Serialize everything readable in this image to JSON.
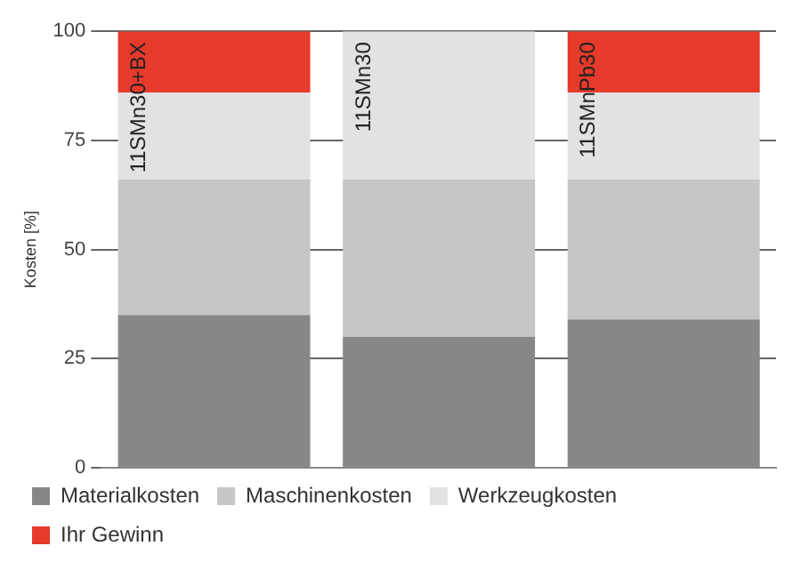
{
  "chart_data": {
    "type": "bar",
    "ylabel": "Kosten [%]",
    "categories": [
      "11SMn30+BX",
      "11SMn30",
      "11SMnPb30"
    ],
    "stacked": true,
    "series": [
      {
        "name": "Materialkosten",
        "color": "#878787",
        "values": [
          35,
          30,
          34
        ]
      },
      {
        "name": "Maschinenkosten",
        "color": "#c6c6c6",
        "values": [
          31,
          36,
          32
        ]
      },
      {
        "name": "Werkzeugkosten",
        "color": "#e2e2e2",
        "values": [
          20,
          34,
          20
        ]
      },
      {
        "name": "Ihr Gewinn",
        "color": "#e63a2b",
        "values": [
          14,
          0,
          14
        ]
      }
    ],
    "ylim": [
      0,
      100
    ],
    "yticks": [
      0,
      25,
      50,
      75,
      100
    ],
    "grid": "y",
    "legend": "bottom",
    "tick_labels": "y"
  }
}
